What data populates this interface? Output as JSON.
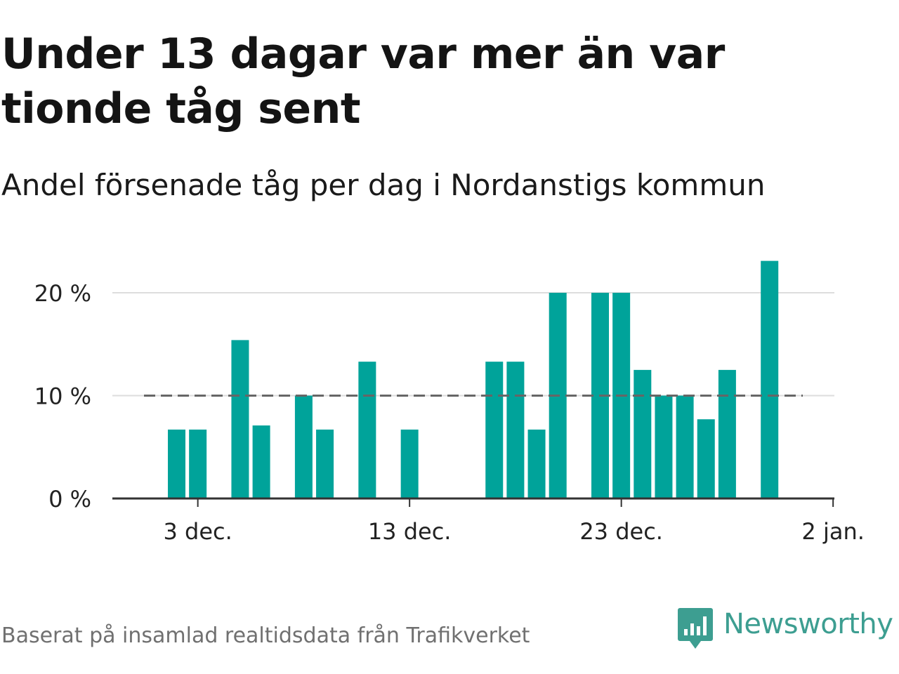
{
  "title": "Under 13 dagar var mer än var tionde tåg sent",
  "subtitle": "Andel försenade tåg per dag i Nordanstigs kommun",
  "source": "Baserat på insamlad realtidsdata från Trafikverket",
  "logo": {
    "text": "Newsworthy",
    "icon": "newsworthy-logo-icon",
    "color": "#3d9e91"
  },
  "colors": {
    "bar": "#00a39a",
    "reference_line": "#666666",
    "grid": "#dddddd",
    "axis": "#333333"
  },
  "chart_data": {
    "type": "bar",
    "x": [
      "2024-12-02",
      "2024-12-03",
      "2024-12-04",
      "2024-12-05",
      "2024-12-06",
      "2024-12-07",
      "2024-12-08",
      "2024-12-09",
      "2024-12-10",
      "2024-12-11",
      "2024-12-12",
      "2024-12-13",
      "2024-12-14",
      "2024-12-15",
      "2024-12-16",
      "2024-12-17",
      "2024-12-18",
      "2024-12-19",
      "2024-12-20",
      "2024-12-21",
      "2024-12-22",
      "2024-12-23",
      "2024-12-24",
      "2024-12-25",
      "2024-12-26",
      "2024-12-27",
      "2024-12-28",
      "2024-12-29",
      "2024-12-30",
      "2024-12-31",
      "2025-01-01"
    ],
    "values": [
      6.7,
      6.7,
      0,
      15.4,
      7.1,
      0,
      10.0,
      6.7,
      0,
      13.3,
      0,
      6.7,
      0,
      0,
      0,
      13.3,
      13.3,
      6.7,
      20.0,
      0,
      20.0,
      20.0,
      12.5,
      10.0,
      10.0,
      7.7,
      12.5,
      0,
      23.1,
      0,
      0
    ],
    "reference_line": {
      "value": 10,
      "style": "dashed"
    },
    "xticks": [
      {
        "date": "2024-12-03",
        "label": "3 dec."
      },
      {
        "date": "2024-12-13",
        "label": "13 dec."
      },
      {
        "date": "2024-12-23",
        "label": "23 dec."
      },
      {
        "date": "2025-01-02",
        "label": "2 jan."
      }
    ],
    "yticks": [
      {
        "value": 0,
        "label": "0 %"
      },
      {
        "value": 10,
        "label": "10 %"
      },
      {
        "value": 20,
        "label": "20 %"
      }
    ],
    "ylim": [
      0,
      25
    ],
    "grid": true
  }
}
